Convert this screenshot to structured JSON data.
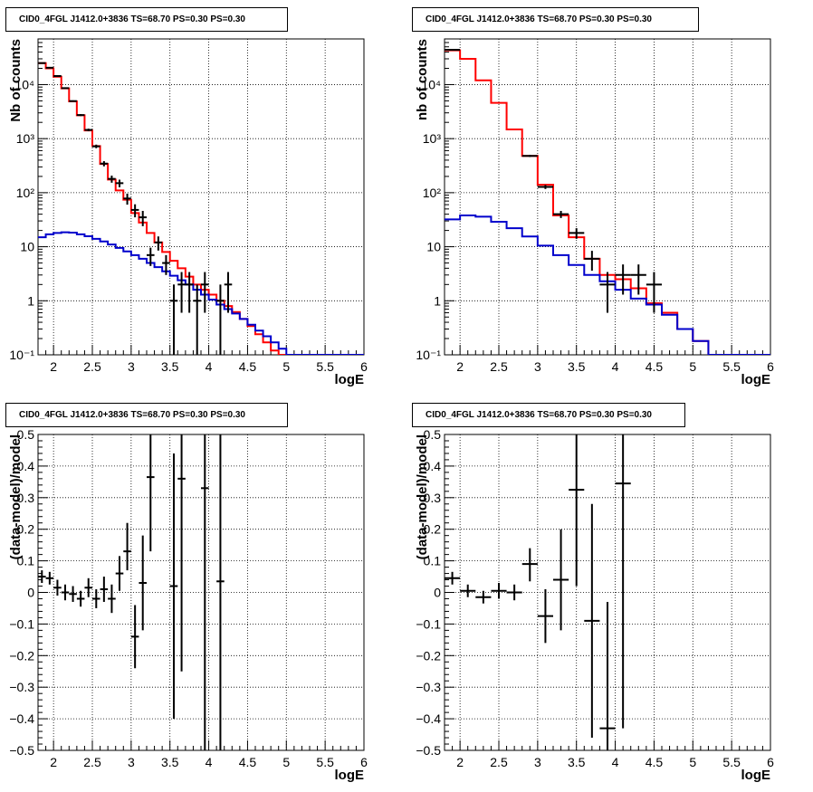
{
  "chart_data": [
    {
      "type": "step",
      "title": "CID0_4FGL J1412.0+3836 TS=68.70 PS=0.30 PS=0.30",
      "xlabel": "logE",
      "ylabel": "Nb of counts",
      "xlim": [
        1.8,
        6
      ],
      "ylim": [
        0.1,
        70000
      ],
      "yscale": "log",
      "grid": true,
      "x_ticks": [
        "2",
        "2.5",
        "3",
        "3.5",
        "4",
        "4.5",
        "5",
        "5.5",
        "6"
      ],
      "y_ticks": [
        "10⁻¹",
        "1",
        "10",
        "10²",
        "10³",
        "10⁴"
      ],
      "bin_edges": [
        1.8,
        1.9,
        2.0,
        2.1,
        2.2,
        2.3,
        2.4,
        2.5,
        2.6,
        2.7,
        2.8,
        2.9,
        3.0,
        3.1,
        3.2,
        3.3,
        3.4,
        3.5,
        3.6,
        3.7,
        3.8,
        3.9,
        4.0,
        4.1,
        4.2,
        4.3,
        4.4,
        4.5,
        4.6,
        4.7,
        4.8,
        4.9,
        5.0,
        5.1,
        5.2,
        5.3,
        5.4,
        5.5,
        5.6,
        5.7,
        5.8,
        5.9,
        6.0
      ],
      "series": [
        {
          "color": "#ff0000",
          "values": [
            25000,
            20000,
            14000,
            8500,
            4900,
            2700,
            1420,
            730,
            340,
            175,
            110,
            74,
            42,
            28,
            18,
            12,
            8,
            5.5,
            4,
            2.8,
            2.0,
            1.6,
            1.3,
            1.0,
            0.8,
            0.62,
            0.46,
            0.34,
            0.24,
            0.17,
            0.12,
            0.1,
            0.1,
            0.1,
            0.1,
            0.1,
            0.1,
            0.1,
            0.1,
            0.1,
            0.1,
            0.1
          ]
        },
        {
          "color": "#0000cc",
          "values": [
            15,
            17,
            18,
            18.5,
            18.2,
            17,
            15.6,
            14,
            12.5,
            11,
            9.5,
            8.2,
            7,
            6,
            5,
            4.2,
            3.5,
            2.9,
            2.4,
            2.0,
            1.6,
            1.3,
            1.05,
            0.85,
            0.7,
            0.58,
            0.46,
            0.36,
            0.28,
            0.22,
            0.17,
            0.13,
            0.1,
            0.1,
            0.1,
            0.1,
            0.1,
            0.1,
            0.1,
            0.1,
            0.1,
            0.1
          ]
        }
      ],
      "points": [
        {
          "x": 1.85,
          "y": 25000,
          "lo": 24700,
          "hi": 25300
        },
        {
          "x": 1.95,
          "y": 20500,
          "lo": 20200,
          "hi": 20800
        },
        {
          "x": 2.05,
          "y": 14400,
          "lo": 14100,
          "hi": 14700
        },
        {
          "x": 2.15,
          "y": 8600,
          "lo": 8400,
          "hi": 8800
        },
        {
          "x": 2.25,
          "y": 4950,
          "lo": 4800,
          "hi": 5100
        },
        {
          "x": 2.35,
          "y": 2730,
          "lo": 2620,
          "hi": 2840
        },
        {
          "x": 2.45,
          "y": 1450,
          "lo": 1370,
          "hi": 1530
        },
        {
          "x": 2.55,
          "y": 720,
          "lo": 665,
          "hi": 775
        },
        {
          "x": 2.65,
          "y": 345,
          "lo": 307,
          "hi": 383
        },
        {
          "x": 2.75,
          "y": 180,
          "lo": 153,
          "hi": 207
        },
        {
          "x": 2.85,
          "y": 150,
          "lo": 126,
          "hi": 174
        },
        {
          "x": 2.95,
          "y": 78,
          "lo": 60,
          "hi": 96
        },
        {
          "x": 3.05,
          "y": 48,
          "lo": 35,
          "hi": 61
        },
        {
          "x": 3.15,
          "y": 35,
          "lo": 24,
          "hi": 46
        },
        {
          "x": 3.25,
          "y": 7,
          "lo": 4.4,
          "hi": 9.6
        },
        {
          "x": 3.35,
          "y": 12,
          "lo": 8.5,
          "hi": 15.5
        },
        {
          "x": 3.45,
          "y": 5,
          "lo": 3,
          "hi": 7
        },
        {
          "x": 3.55,
          "y": 1,
          "lo": 0.1,
          "hi": 2.0
        },
        {
          "x": 3.65,
          "y": 2,
          "lo": 0.6,
          "hi": 3.4
        },
        {
          "x": 3.75,
          "y": 2,
          "lo": 0.6,
          "hi": 3.4
        },
        {
          "x": 3.85,
          "y": 1,
          "lo": 0.1,
          "hi": 2.0
        },
        {
          "x": 3.95,
          "y": 2,
          "lo": 0.6,
          "hi": 3.4
        },
        {
          "x": 4.15,
          "y": 1,
          "lo": 0.1,
          "hi": 2.0
        },
        {
          "x": 4.25,
          "y": 2,
          "lo": 0.6,
          "hi": 3.4
        }
      ]
    },
    {
      "type": "step",
      "title": "CID0_4FGL J1412.0+3836 TS=68.70 PS=0.30 PS=0.30",
      "xlabel": "logE",
      "ylabel": "nb of counts",
      "xlim": [
        1.8,
        6
      ],
      "ylim": [
        0.1,
        70000
      ],
      "yscale": "log",
      "grid": true,
      "x_ticks": [
        "2",
        "2.5",
        "3",
        "3.5",
        "4",
        "4.5",
        "5",
        "5.5",
        "6"
      ],
      "y_ticks": [
        "10⁻¹",
        "1",
        "10",
        "10²",
        "10³",
        "10⁴"
      ],
      "bin_edges": [
        1.8,
        2.0,
        2.2,
        2.4,
        2.6,
        2.8,
        3.0,
        3.2,
        3.4,
        3.6,
        3.8,
        4.0,
        4.2,
        4.4,
        4.6,
        4.8,
        5.0,
        5.2,
        5.4,
        5.6,
        5.8,
        6.0
      ],
      "series": [
        {
          "color": "#ff0000",
          "values": [
            43000,
            30000,
            12000,
            4600,
            1480,
            480,
            140,
            38,
            15,
            6,
            3,
            2.5,
            1.7,
            0.9,
            0.6,
            0.3,
            0.18,
            0.1,
            0.1,
            0.1,
            0.1
          ]
        },
        {
          "color": "#0000cc",
          "values": [
            32,
            38,
            36,
            29,
            22,
            15.5,
            10.5,
            7,
            4.6,
            3.0,
            2.3,
            1.6,
            1.1,
            0.85,
            0.55,
            0.3,
            0.18,
            0.1,
            0.1,
            0.1,
            0.1
          ]
        }
      ],
      "points": [
        {
          "x": 1.9,
          "y": 44000,
          "lo": 43600,
          "hi": 44400
        },
        {
          "x": 2.9,
          "y": 480,
          "lo": 458,
          "hi": 502
        },
        {
          "x": 3.1,
          "y": 128,
          "lo": 117,
          "hi": 139
        },
        {
          "x": 3.3,
          "y": 40,
          "lo": 34,
          "hi": 46
        },
        {
          "x": 3.5,
          "y": 18,
          "lo": 14,
          "hi": 22
        },
        {
          "x": 3.7,
          "y": 6,
          "lo": 3.6,
          "hi": 8.4
        },
        {
          "x": 3.9,
          "y": 2,
          "lo": 0.6,
          "hi": 3.4
        },
        {
          "x": 4.1,
          "y": 3,
          "lo": 1.3,
          "hi": 4.7
        },
        {
          "x": 4.3,
          "y": 3,
          "lo": 1.3,
          "hi": 4.7
        },
        {
          "x": 4.5,
          "y": 2,
          "lo": 0.6,
          "hi": 3.4
        }
      ]
    },
    {
      "type": "scatter",
      "title": "CID0_4FGL J1412.0+3836 TS=68.70 PS=0.30 PS=0.30",
      "xlabel": "logE",
      "ylabel": "(data-model)/model",
      "xlim": [
        1.8,
        6
      ],
      "ylim": [
        -0.5,
        0.5
      ],
      "grid": true,
      "x_ticks": [
        "2",
        "2.5",
        "3",
        "3.5",
        "4",
        "4.5",
        "5",
        "5.5",
        "6"
      ],
      "y_ticks": [
        "−0.5",
        "−0.4",
        "−0.3",
        "−0.2",
        "−0.1",
        "0",
        "0.1",
        "0.2",
        "0.3",
        "0.4",
        "0.5"
      ],
      "bin_width": 0.1,
      "points": [
        {
          "x": 1.85,
          "y": 0.05,
          "lo": 0.03,
          "hi": 0.07
        },
        {
          "x": 1.95,
          "y": 0.045,
          "lo": 0.025,
          "hi": 0.065
        },
        {
          "x": 2.05,
          "y": 0.015,
          "lo": -0.01,
          "hi": 0.04
        },
        {
          "x": 2.15,
          "y": 0.0,
          "lo": -0.025,
          "hi": 0.025
        },
        {
          "x": 2.25,
          "y": -0.005,
          "lo": -0.03,
          "hi": 0.02
        },
        {
          "x": 2.35,
          "y": -0.02,
          "lo": -0.045,
          "hi": 0.005
        },
        {
          "x": 2.45,
          "y": 0.015,
          "lo": -0.015,
          "hi": 0.045
        },
        {
          "x": 2.55,
          "y": -0.02,
          "lo": -0.05,
          "hi": 0.01
        },
        {
          "x": 2.65,
          "y": 0.01,
          "lo": -0.03,
          "hi": 0.05
        },
        {
          "x": 2.75,
          "y": -0.02,
          "lo": -0.065,
          "hi": 0.025
        },
        {
          "x": 2.85,
          "y": 0.06,
          "lo": 0.005,
          "hi": 0.115
        },
        {
          "x": 2.95,
          "y": 0.13,
          "lo": 0.07,
          "hi": 0.22
        },
        {
          "x": 3.05,
          "y": -0.14,
          "lo": -0.24,
          "hi": -0.04
        },
        {
          "x": 3.15,
          "y": 0.03,
          "lo": -0.12,
          "hi": 0.18
        },
        {
          "x": 3.25,
          "y": 0.365,
          "lo": 0.13,
          "hi": 0.5
        },
        {
          "x": 3.55,
          "y": 0.02,
          "lo": -0.4,
          "hi": 0.44
        },
        {
          "x": 3.65,
          "y": 0.36,
          "lo": -0.25,
          "hi": 0.5
        },
        {
          "x": 3.95,
          "y": 0.33,
          "lo": -0.5,
          "hi": 0.5
        },
        {
          "x": 4.15,
          "y": 0.035,
          "lo": -0.5,
          "hi": 0.5
        }
      ]
    },
    {
      "type": "scatter",
      "title": "CID0_4FGL J1412.0+3836 TS=68.70 PS=0.30 PS=0.30",
      "xlabel": "logE",
      "ylabel": "(data-model)/model",
      "xlim": [
        1.8,
        6
      ],
      "ylim": [
        -0.5,
        0.5
      ],
      "grid": true,
      "x_ticks": [
        "2",
        "2.5",
        "3",
        "3.5",
        "4",
        "4.5",
        "5",
        "5.5",
        "6"
      ],
      "y_ticks": [
        "−0.5",
        "−0.4",
        "−0.3",
        "−0.2",
        "−0.1",
        "0",
        "0.1",
        "0.2",
        "0.3",
        "0.4",
        "0.5"
      ],
      "bin_width": 0.2,
      "points": [
        {
          "x": 1.9,
          "y": 0.045,
          "lo": 0.025,
          "hi": 0.065
        },
        {
          "x": 2.1,
          "y": 0.005,
          "lo": -0.015,
          "hi": 0.025
        },
        {
          "x": 2.3,
          "y": -0.015,
          "lo": -0.035,
          "hi": 0.005
        },
        {
          "x": 2.5,
          "y": 0.005,
          "lo": -0.02,
          "hi": 0.03
        },
        {
          "x": 2.7,
          "y": 0.0,
          "lo": -0.025,
          "hi": 0.025
        },
        {
          "x": 2.9,
          "y": 0.09,
          "lo": 0.035,
          "hi": 0.14
        },
        {
          "x": 3.1,
          "y": -0.075,
          "lo": -0.16,
          "hi": 0.01
        },
        {
          "x": 3.3,
          "y": 0.04,
          "lo": -0.12,
          "hi": 0.2
        },
        {
          "x": 3.5,
          "y": 0.325,
          "lo": 0.02,
          "hi": 0.5
        },
        {
          "x": 3.7,
          "y": -0.09,
          "lo": -0.46,
          "hi": 0.28
        },
        {
          "x": 3.9,
          "y": -0.43,
          "lo": -0.5,
          "hi": -0.03
        },
        {
          "x": 4.1,
          "y": 0.345,
          "lo": -0.43,
          "hi": 0.5
        }
      ]
    }
  ]
}
